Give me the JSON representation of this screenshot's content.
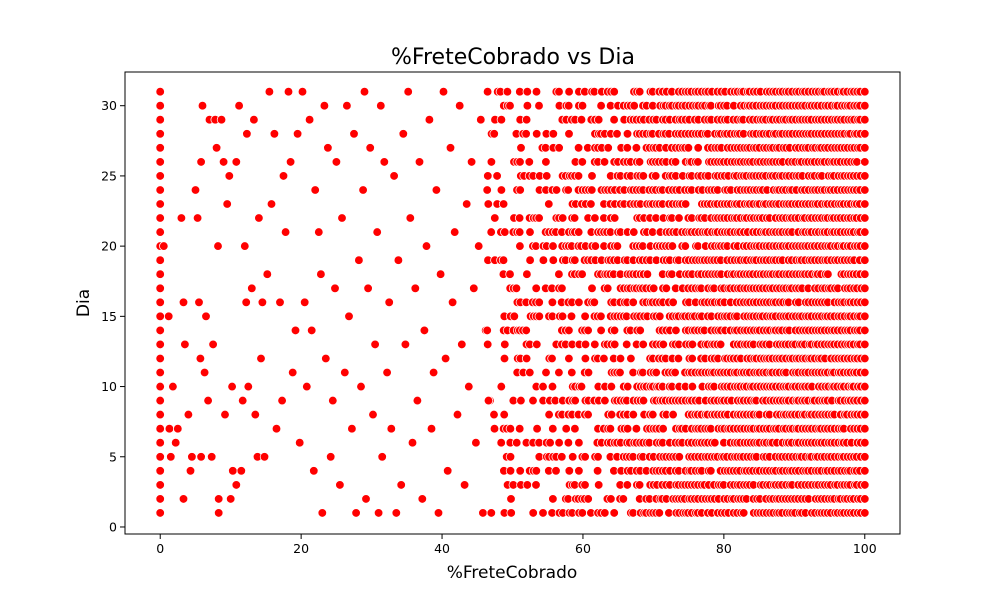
{
  "chart_data": {
    "type": "scatter",
    "title": "%FreteCobrado vs Dia",
    "xlabel": "%FreteCobrado",
    "ylabel": "Dia",
    "xlim": [
      -5,
      105
    ],
    "ylim": [
      -0.5,
      32.4
    ],
    "xticks": [
      0,
      20,
      40,
      60,
      80,
      100
    ],
    "yticks": [
      0,
      5,
      10,
      15,
      20,
      25,
      30
    ],
    "grid": false,
    "legend": "none",
    "marker_color": "#ff0000",
    "marker_edge_color": "#ffffff",
    "series": [
      {
        "points": [
          [
            0,
            1
          ],
          [
            0,
            2
          ],
          [
            0,
            3
          ],
          [
            0,
            4
          ],
          [
            0,
            5
          ],
          [
            0,
            6
          ],
          [
            0,
            7
          ],
          [
            0,
            8
          ],
          [
            0,
            9
          ],
          [
            0,
            10
          ],
          [
            0,
            11
          ],
          [
            0,
            12
          ],
          [
            0,
            13
          ],
          [
            0,
            14
          ],
          [
            0,
            15
          ],
          [
            0,
            16
          ],
          [
            0,
            17
          ],
          [
            0,
            18
          ],
          [
            0,
            19
          ],
          [
            0,
            20
          ],
          [
            0,
            21
          ],
          [
            0,
            22
          ],
          [
            0,
            23
          ],
          [
            0,
            24
          ],
          [
            0,
            25
          ],
          [
            0,
            26
          ],
          [
            0,
            27
          ],
          [
            0,
            28
          ],
          [
            0,
            29
          ],
          [
            0,
            30
          ],
          [
            0,
            31
          ],
          [
            0.5,
            20
          ],
          [
            1.2,
            15
          ],
          [
            1.3,
            7
          ],
          [
            1.5,
            5
          ],
          [
            1.8,
            10
          ],
          [
            2.2,
            6
          ],
          [
            2.5,
            7
          ],
          [
            3.0,
            22
          ],
          [
            3.3,
            16
          ],
          [
            3.3,
            2
          ],
          [
            3.5,
            13
          ],
          [
            4.0,
            8
          ],
          [
            4.3,
            4
          ],
          [
            4.5,
            5
          ],
          [
            5.0,
            24
          ],
          [
            5.3,
            22
          ],
          [
            5.5,
            16
          ],
          [
            5.7,
            12
          ],
          [
            5.8,
            26
          ],
          [
            5.8,
            5
          ],
          [
            6.0,
            30
          ],
          [
            6.3,
            11
          ],
          [
            6.5,
            15
          ],
          [
            6.8,
            9
          ],
          [
            7.0,
            29
          ],
          [
            7.3,
            5
          ],
          [
            7.5,
            13
          ],
          [
            7.8,
            29
          ],
          [
            8.0,
            27
          ],
          [
            8.2,
            20
          ],
          [
            8.3,
            2
          ],
          [
            8.3,
            1
          ],
          [
            8.7,
            29
          ],
          [
            9.0,
            26
          ],
          [
            9.2,
            8
          ],
          [
            9.5,
            23
          ],
          [
            9.8,
            25
          ],
          [
            10.0,
            2
          ],
          [
            10.2,
            10
          ],
          [
            10.3,
            4
          ],
          [
            10.8,
            26
          ],
          [
            10.8,
            3
          ],
          [
            11.2,
            30
          ],
          [
            11.5,
            4
          ],
          [
            11.7,
            9
          ],
          [
            12.0,
            20
          ],
          [
            12.2,
            16
          ],
          [
            12.3,
            28
          ],
          [
            12.5,
            10
          ],
          [
            13.0,
            17
          ],
          [
            13.3,
            29
          ],
          [
            13.5,
            8
          ],
          [
            13.8,
            5
          ],
          [
            14.0,
            22
          ],
          [
            14.3,
            12
          ],
          [
            14.5,
            16
          ],
          [
            14.8,
            5
          ],
          [
            15.2,
            18
          ],
          [
            15.5,
            31
          ],
          [
            15.8,
            23
          ],
          [
            16.2,
            28
          ],
          [
            16.5,
            7
          ],
          [
            17.0,
            16
          ],
          [
            17.3,
            9
          ],
          [
            17.5,
            25
          ],
          [
            17.8,
            21
          ],
          [
            18.2,
            31
          ],
          [
            18.5,
            26
          ],
          [
            18.8,
            11
          ],
          [
            19.2,
            14
          ],
          [
            19.5,
            28
          ],
          [
            19.8,
            6
          ],
          [
            20.2,
            31
          ],
          [
            20.5,
            16
          ],
          [
            20.8,
            10
          ],
          [
            21.2,
            29
          ],
          [
            21.5,
            14
          ],
          [
            21.8,
            4
          ],
          [
            22.0,
            24
          ],
          [
            22.5,
            21
          ],
          [
            22.8,
            18
          ],
          [
            23.0,
            1
          ],
          [
            23.3,
            30
          ],
          [
            23.5,
            12
          ],
          [
            23.8,
            27
          ],
          [
            24.2,
            5
          ],
          [
            24.5,
            9
          ],
          [
            24.8,
            17
          ],
          [
            25.0,
            26
          ],
          [
            25.5,
            3
          ],
          [
            25.8,
            22
          ],
          [
            26.2,
            11
          ],
          [
            26.5,
            30
          ],
          [
            26.8,
            15
          ],
          [
            27.2,
            7
          ],
          [
            27.5,
            28
          ],
          [
            27.8,
            1
          ],
          [
            28.2,
            19
          ],
          [
            28.5,
            10
          ],
          [
            28.8,
            24
          ],
          [
            29.0,
            31
          ],
          [
            29.2,
            2
          ],
          [
            29.5,
            17
          ],
          [
            29.8,
            27
          ],
          [
            30.2,
            8
          ],
          [
            30.5,
            13
          ],
          [
            30.8,
            21
          ],
          [
            31.0,
            1
          ],
          [
            31.3,
            30
          ],
          [
            31.5,
            5
          ],
          [
            31.8,
            26
          ],
          [
            32.2,
            11
          ],
          [
            32.5,
            16
          ],
          [
            32.8,
            7
          ],
          [
            33.2,
            25
          ],
          [
            33.5,
            1
          ],
          [
            33.8,
            19
          ],
          [
            34.2,
            3
          ],
          [
            34.5,
            28
          ],
          [
            34.8,
            13
          ],
          [
            35.2,
            31
          ],
          [
            35.5,
            22
          ],
          [
            35.8,
            6
          ],
          [
            36.2,
            17
          ],
          [
            36.5,
            9
          ],
          [
            36.8,
            26
          ],
          [
            37.2,
            2
          ],
          [
            37.5,
            14
          ],
          [
            37.8,
            20
          ],
          [
            38.2,
            29
          ],
          [
            38.5,
            7
          ],
          [
            38.8,
            11
          ],
          [
            39.2,
            24
          ],
          [
            39.5,
            1
          ],
          [
            39.8,
            18
          ],
          [
            40.2,
            31
          ],
          [
            40.5,
            12
          ],
          [
            40.8,
            4
          ],
          [
            41.2,
            27
          ],
          [
            41.5,
            16
          ],
          [
            41.8,
            21
          ],
          [
            42.2,
            8
          ],
          [
            42.5,
            30
          ],
          [
            42.8,
            13
          ],
          [
            43.2,
            3
          ],
          [
            43.5,
            23
          ],
          [
            43.8,
            10
          ],
          [
            44.2,
            26
          ],
          [
            44.5,
            17
          ],
          [
            44.8,
            6
          ],
          [
            45.2,
            20
          ],
          [
            45.5,
            29
          ],
          [
            45.8,
            1
          ],
          [
            46.2,
            14
          ],
          [
            46.5,
            25
          ],
          [
            46.8,
            9
          ]
        ]
      }
    ]
  }
}
